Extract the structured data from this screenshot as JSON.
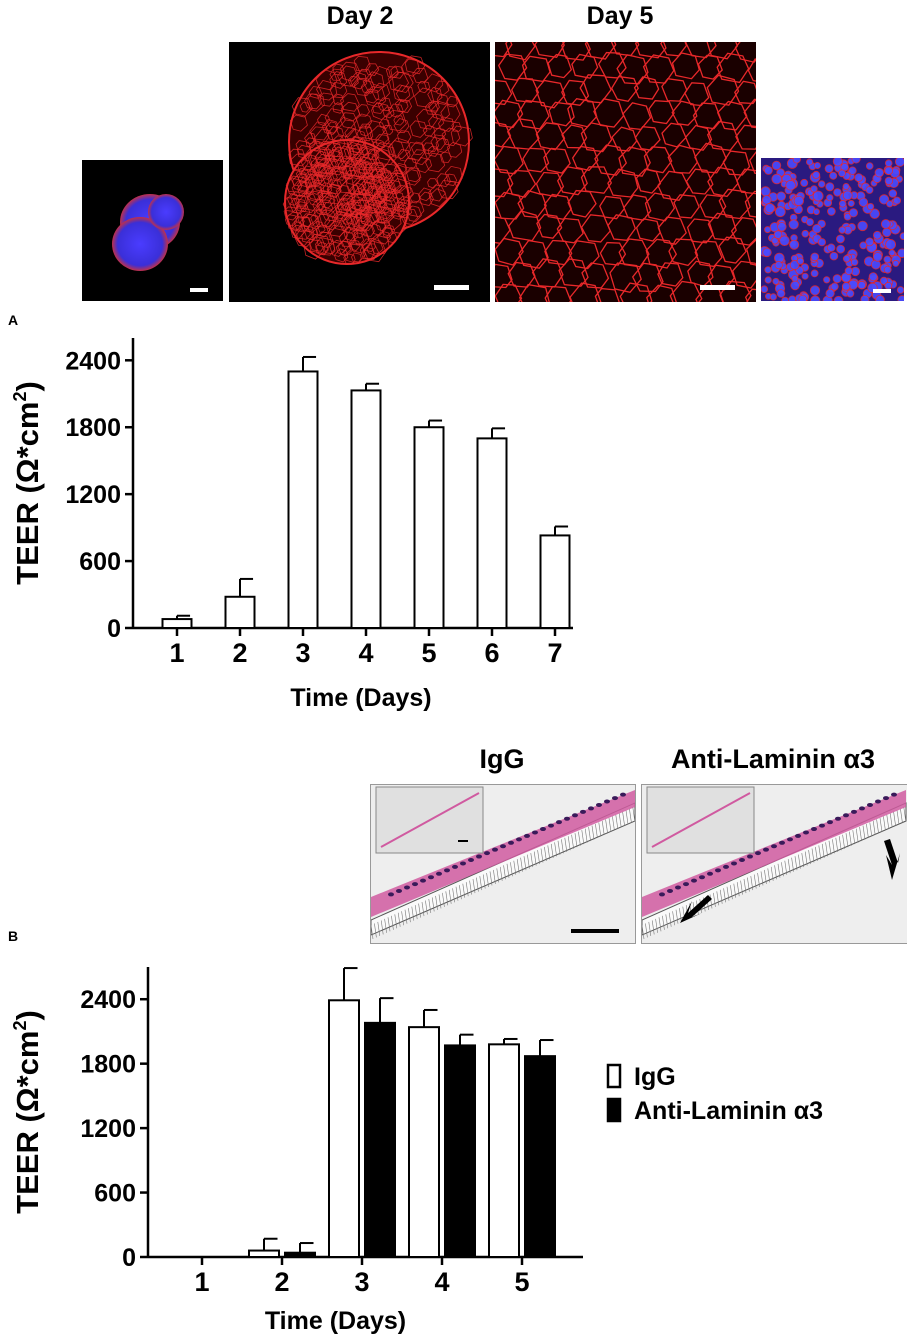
{
  "top_images": {
    "day2_label": "Day 2",
    "day5_label": "Day 5"
  },
  "histology": {
    "igg_label": "IgG",
    "anti_label": "Anti-Laminin α3"
  },
  "panels": {
    "a_label": "A",
    "b_label": "B"
  },
  "colors": {
    "tight_junction_red": "#e8282a",
    "nuclei_blue": "#3a3aff",
    "he_pink": "#d05aa0",
    "bar_open": "#ffffff",
    "bar_filled": "#000000"
  },
  "chart_data": [
    {
      "type": "bar",
      "panel": "A",
      "title": "",
      "xlabel": "Time (Days)",
      "ylabel": "TEER (Ω*cm²)",
      "ylabel_main": "TEER (Ω*cm",
      "ylabel_sup": "2",
      "ylabel_close": ")",
      "ylim": [
        0,
        2600
      ],
      "yticks": [
        0,
        600,
        1200,
        1800,
        2400
      ],
      "categories": [
        "1",
        "2",
        "3",
        "4",
        "5",
        "6",
        "7"
      ],
      "values": [
        80,
        280,
        2300,
        2130,
        1800,
        1700,
        830
      ],
      "errors": [
        30,
        160,
        130,
        60,
        60,
        90,
        80
      ],
      "grid": false
    },
    {
      "type": "bar",
      "panel": "B",
      "title": "",
      "xlabel": "Time (Days)",
      "ylabel": "TEER (Ω*cm²)",
      "ylabel_main": "TEER (Ω*cm",
      "ylabel_sup": "2",
      "ylabel_close": ")",
      "ylim": [
        0,
        2700
      ],
      "yticks": [
        0,
        600,
        1200,
        1800,
        2400
      ],
      "categories": [
        "1",
        "2",
        "3",
        "4",
        "5"
      ],
      "series": [
        {
          "name": "IgG",
          "values": [
            0,
            60,
            2390,
            2140,
            1980
          ],
          "errors": [
            0,
            110,
            300,
            160,
            50
          ]
        },
        {
          "name": "Anti-Laminin α3",
          "values": [
            0,
            40,
            2180,
            1970,
            1870
          ],
          "errors": [
            0,
            90,
            230,
            100,
            150
          ]
        }
      ],
      "legend_position": "right",
      "grid": false
    }
  ]
}
